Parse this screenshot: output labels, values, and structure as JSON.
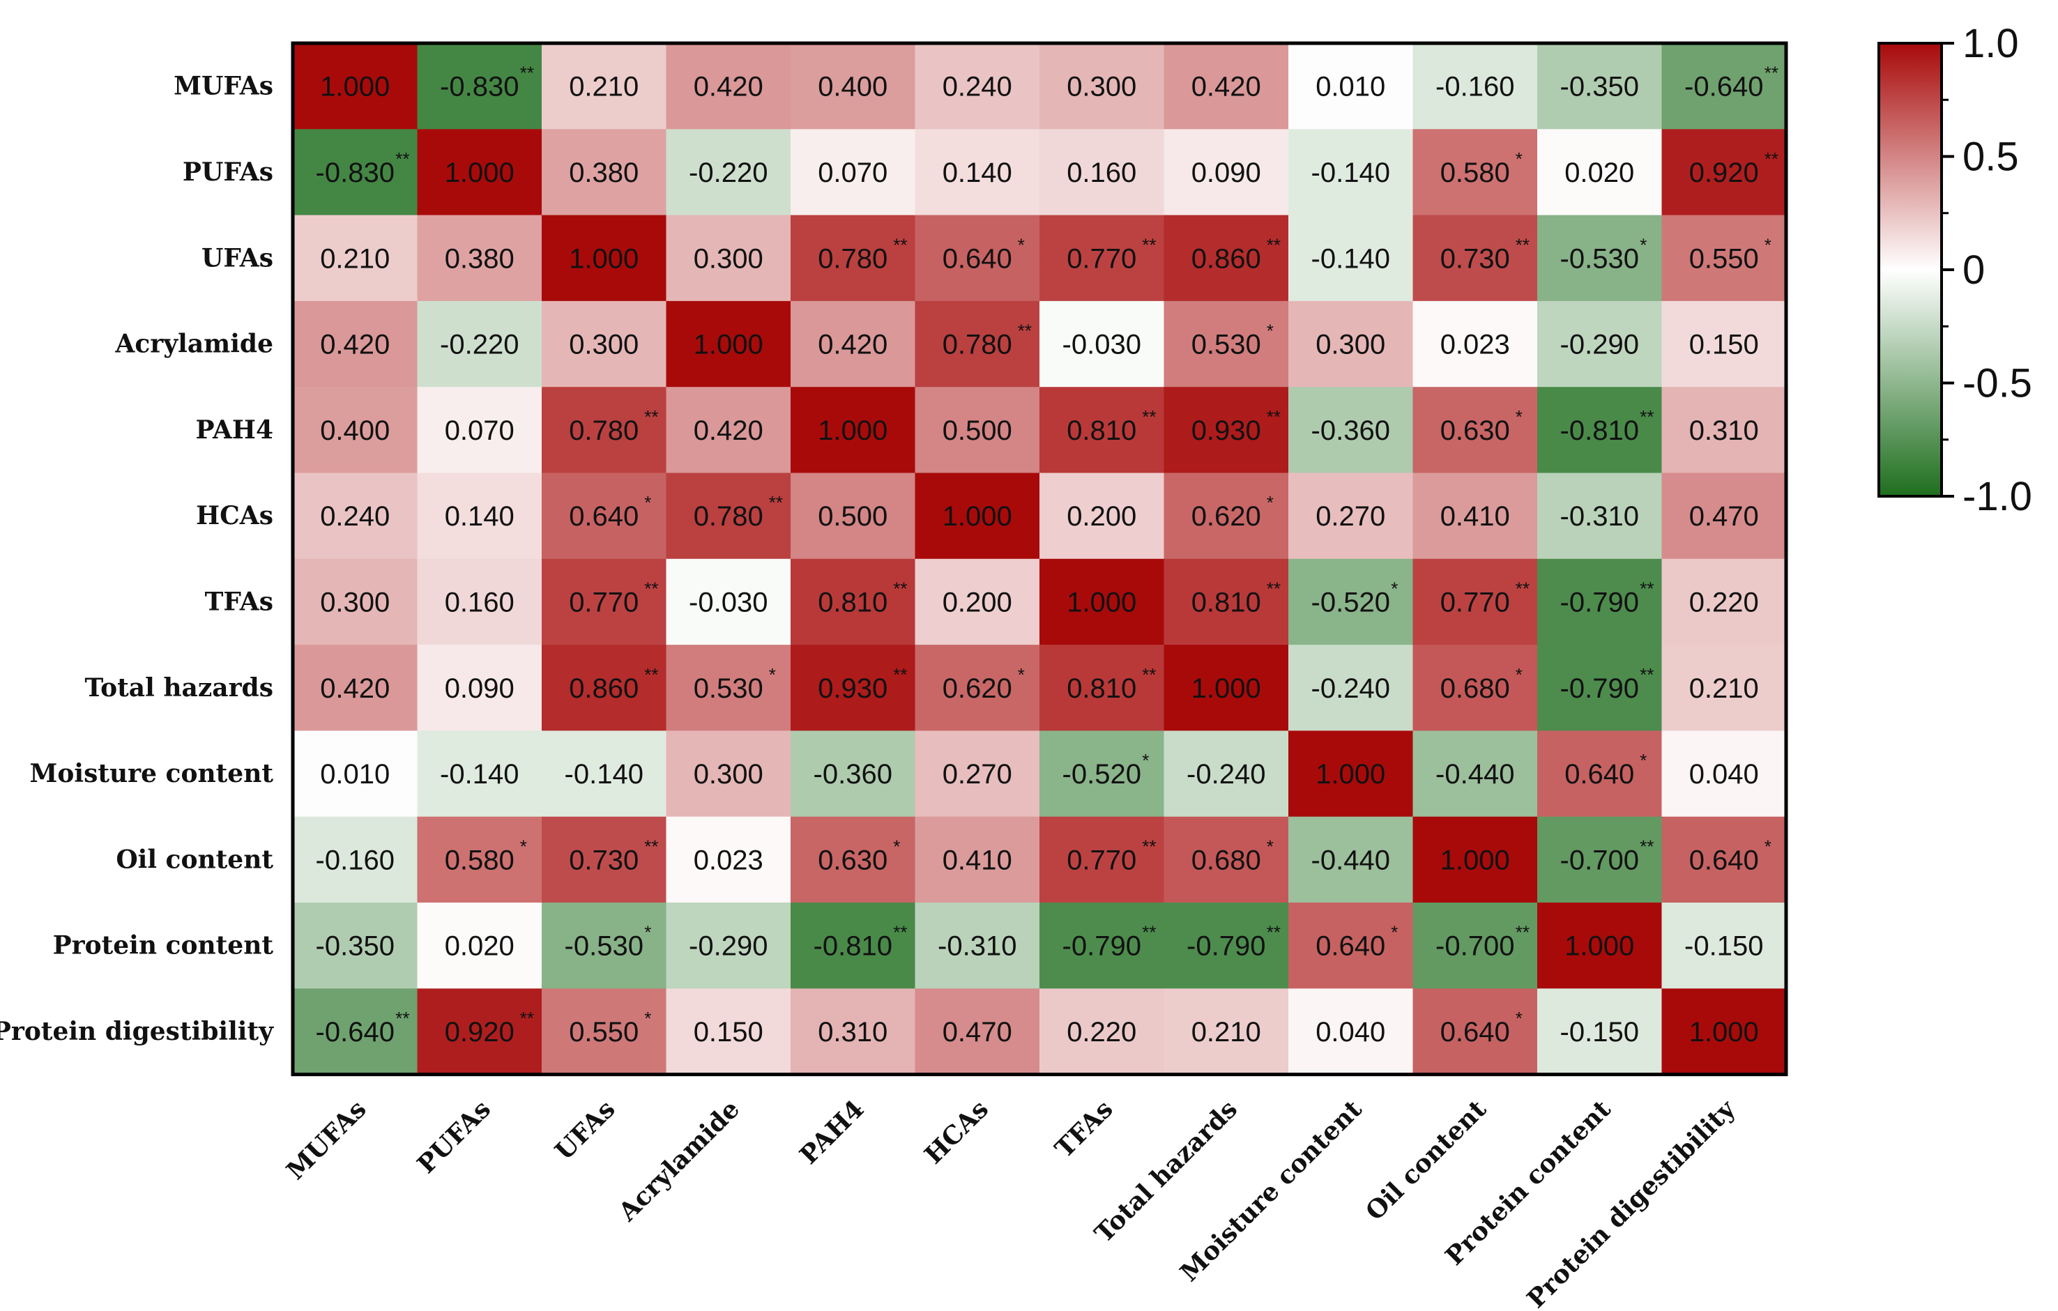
{
  "chart_data": {
    "type": "heatmap",
    "title": "",
    "row_labels": [
      "MUFAs",
      "PUFAs",
      "UFAs",
      "Acrylamide",
      "PAH4",
      "HCAs",
      "TFAs",
      "Total hazards",
      "Moisture content",
      "Oil content",
      "Protein content",
      "Protein digestibility"
    ],
    "col_labels": [
      "MUFAs",
      "PUFAs",
      "UFAs",
      "Acrylamide",
      "PAH4",
      "HCAs",
      "TFAs",
      "Total hazards",
      "Moisture content",
      "Oil content",
      "Protein content",
      "Protein digestibility"
    ],
    "values": [
      [
        1.0,
        -0.83,
        0.21,
        0.42,
        0.4,
        0.24,
        0.3,
        0.42,
        0.01,
        -0.16,
        -0.35,
        -0.64
      ],
      [
        -0.83,
        1.0,
        0.38,
        -0.22,
        0.07,
        0.14,
        0.16,
        0.09,
        -0.14,
        0.58,
        0.02,
        0.92
      ],
      [
        0.21,
        0.38,
        1.0,
        0.3,
        0.78,
        0.64,
        0.77,
        0.86,
        -0.14,
        0.73,
        -0.53,
        0.55
      ],
      [
        0.42,
        -0.22,
        0.3,
        1.0,
        0.42,
        0.78,
        -0.03,
        0.53,
        0.3,
        0.023,
        -0.29,
        0.15
      ],
      [
        0.4,
        0.07,
        0.78,
        0.42,
        1.0,
        0.5,
        0.81,
        0.93,
        -0.36,
        0.63,
        -0.81,
        0.31
      ],
      [
        0.24,
        0.14,
        0.64,
        0.78,
        0.5,
        1.0,
        0.2,
        0.62,
        0.27,
        0.41,
        -0.31,
        0.47
      ],
      [
        0.3,
        0.16,
        0.77,
        -0.03,
        0.81,
        0.2,
        1.0,
        0.81,
        -0.52,
        0.77,
        -0.79,
        0.22
      ],
      [
        0.42,
        0.09,
        0.86,
        0.53,
        0.93,
        0.62,
        0.81,
        1.0,
        -0.24,
        0.68,
        -0.79,
        0.21
      ],
      [
        0.01,
        -0.14,
        -0.14,
        0.3,
        -0.36,
        0.27,
        -0.52,
        -0.24,
        1.0,
        -0.44,
        0.64,
        0.04
      ],
      [
        -0.16,
        0.58,
        0.73,
        0.023,
        0.63,
        0.41,
        0.77,
        0.68,
        -0.44,
        1.0,
        -0.7,
        0.64
      ],
      [
        -0.35,
        0.02,
        -0.53,
        -0.29,
        -0.81,
        -0.31,
        -0.79,
        -0.79,
        0.64,
        -0.7,
        1.0,
        -0.15
      ],
      [
        -0.64,
        0.92,
        0.55,
        0.15,
        0.31,
        0.47,
        0.22,
        0.21,
        0.04,
        0.64,
        -0.15,
        1.0
      ]
    ],
    "cell_text": [
      [
        "1.000",
        "-0.830",
        "0.210",
        "0.420",
        "0.400",
        "0.240",
        "0.300",
        "0.420",
        "0.010",
        "-0.160",
        "-0.350",
        "-0.640"
      ],
      [
        "-0.830",
        "1.000",
        "0.380",
        "-0.220",
        "0.070",
        "0.140",
        "0.160",
        "0.090",
        "-0.140",
        "0.580",
        "0.020",
        "0.920"
      ],
      [
        "0.210",
        "0.380",
        "1.000",
        "0.300",
        "0.780",
        "0.640",
        "0.770",
        "0.860",
        "-0.140",
        "0.730",
        "-0.530",
        "0.550"
      ],
      [
        "0.420",
        "-0.220",
        "0.300",
        "1.000",
        "0.420",
        "0.780",
        "-0.030",
        "0.530",
        "0.300",
        "0.023",
        "-0.290",
        "0.150"
      ],
      [
        "0.400",
        "0.070",
        "0.780",
        "0.420",
        "1.000",
        "0.500",
        "0.810",
        "0.930",
        "-0.360",
        "0.630",
        "-0.810",
        "0.310"
      ],
      [
        "0.240",
        "0.140",
        "0.640",
        "0.780",
        "0.500",
        "1.000",
        "0.200",
        "0.620",
        "0.270",
        "0.410",
        "-0.310",
        "0.470"
      ],
      [
        "0.300",
        "0.160",
        "0.770",
        "-0.030",
        "0.810",
        "0.200",
        "1.000",
        "0.810",
        "-0.520",
        "0.770",
        "-0.790",
        "0.220"
      ],
      [
        "0.420",
        "0.090",
        "0.860",
        "0.530",
        "0.930",
        "0.620",
        "0.810",
        "1.000",
        "-0.240",
        "0.680",
        "-0.790",
        "0.210"
      ],
      [
        "0.010",
        "-0.140",
        "-0.140",
        "0.300",
        "-0.360",
        "0.270",
        "-0.520",
        "-0.240",
        "1.000",
        "-0.440",
        "0.640",
        "0.040"
      ],
      [
        "-0.160",
        "0.580",
        "0.730",
        "0.023",
        "0.630",
        "0.410",
        "0.770",
        "0.680",
        "-0.440",
        "1.000",
        "-0.700",
        "0.640"
      ],
      [
        "-0.350",
        "0.020",
        "-0.530",
        "-0.290",
        "-0.810",
        "-0.310",
        "-0.790",
        "-0.790",
        "0.640",
        "-0.700",
        "1.000",
        "-0.150"
      ],
      [
        "-0.640",
        "0.920",
        "0.550",
        "0.150",
        "0.310",
        "0.470",
        "0.220",
        "0.210",
        "0.040",
        "0.640",
        "-0.150",
        "1.000"
      ]
    ],
    "significance": [
      [
        "",
        "**",
        "",
        "",
        "",
        "",
        "",
        "",
        "",
        "",
        "",
        "**"
      ],
      [
        "**",
        "",
        "",
        "",
        "",
        "",
        "",
        "",
        "",
        "*",
        "",
        "**"
      ],
      [
        "",
        "",
        "",
        "",
        "**",
        "*",
        "**",
        "**",
        "",
        "**",
        "*",
        "*"
      ],
      [
        "",
        "",
        "",
        "",
        "",
        "**",
        "",
        "*",
        "",
        "",
        "",
        ""
      ],
      [
        "",
        "",
        "**",
        "",
        "",
        "",
        "**",
        "**",
        "",
        "*",
        "**",
        ""
      ],
      [
        "",
        "",
        "*",
        "**",
        "",
        "",
        "",
        "*",
        "",
        "",
        "",
        ""
      ],
      [
        "",
        "",
        "**",
        "",
        "**",
        "",
        "",
        "**",
        "*",
        "**",
        "**",
        ""
      ],
      [
        "",
        "",
        "**",
        "*",
        "**",
        "*",
        "**",
        "",
        "",
        "*",
        "**",
        ""
      ],
      [
        "",
        "",
        "",
        "",
        "",
        "",
        "*",
        "",
        "",
        "",
        "*",
        ""
      ],
      [
        "",
        "*",
        "**",
        "",
        "*",
        "",
        "**",
        "*",
        "",
        "",
        "**",
        "*"
      ],
      [
        "",
        "",
        "*",
        "",
        "**",
        "",
        "**",
        "**",
        "*",
        "**",
        "",
        ""
      ],
      [
        "**",
        "**",
        "*",
        "",
        "",
        "",
        "",
        "",
        "",
        "*",
        "",
        ""
      ]
    ],
    "colorbar": {
      "range": [
        -1.0,
        1.0
      ],
      "tick_values": [
        1.0,
        0.5,
        0,
        -0.5,
        -1.0
      ],
      "tick_labels": [
        "1.0",
        "0.5",
        "0",
        "-0.5",
        "-1.0"
      ],
      "colors": {
        "negative": "#1e6e1e",
        "zero": "#ffffff",
        "positive": "#a80a0a"
      }
    }
  }
}
